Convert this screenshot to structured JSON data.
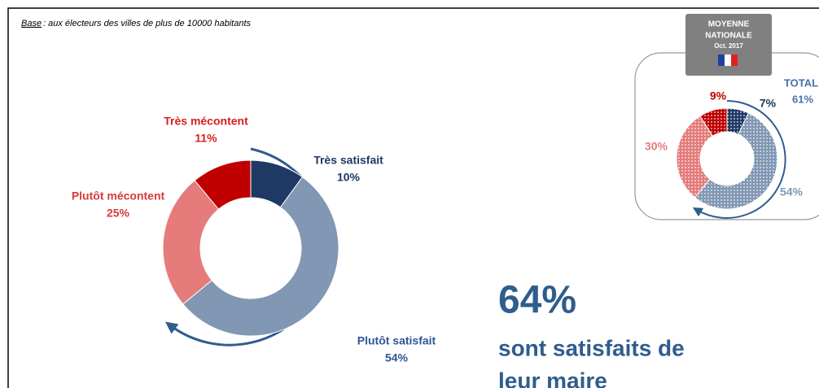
{
  "chart_data": [
    {
      "type": "donut",
      "note_key": "Base",
      "note": " : aux électeurs des villes de plus de 10000 habitants",
      "categories": [
        "Très satisfait",
        "Plutôt satisfait",
        "Plutôt mécontent",
        "Très mécontent"
      ],
      "values": [
        10,
        54,
        25,
        11
      ],
      "value_labels": [
        "10%",
        "54%",
        "25%",
        "11%"
      ],
      "colors": [
        "#1f3864",
        "#8197b3",
        "#e57b7b",
        "#c00000"
      ],
      "label_colors": [
        "#1f3864",
        "#2f5597",
        "#d93a3a",
        "#d62020"
      ],
      "highlight_value": 64,
      "highlight_label": "64%",
      "highlight_text": [
        "sont satisfaits de",
        "leur maire"
      ]
    },
    {
      "type": "donut",
      "badge": [
        "MOYENNE",
        "NATIONALE",
        "Oct. 2017"
      ],
      "total_title": "TOTAL",
      "total_value": 61,
      "total_label": "61%",
      "values": [
        7,
        54,
        30,
        9
      ],
      "value_labels": [
        "7%",
        "54%",
        "30%",
        "9%"
      ],
      "colors": [
        "#1f3864",
        "#8197b3",
        "#e57b7b",
        "#c00000"
      ],
      "label_colors": [
        "#1f3864",
        "#8197b3",
        "#e57b7b",
        "#c00000"
      ]
    }
  ]
}
